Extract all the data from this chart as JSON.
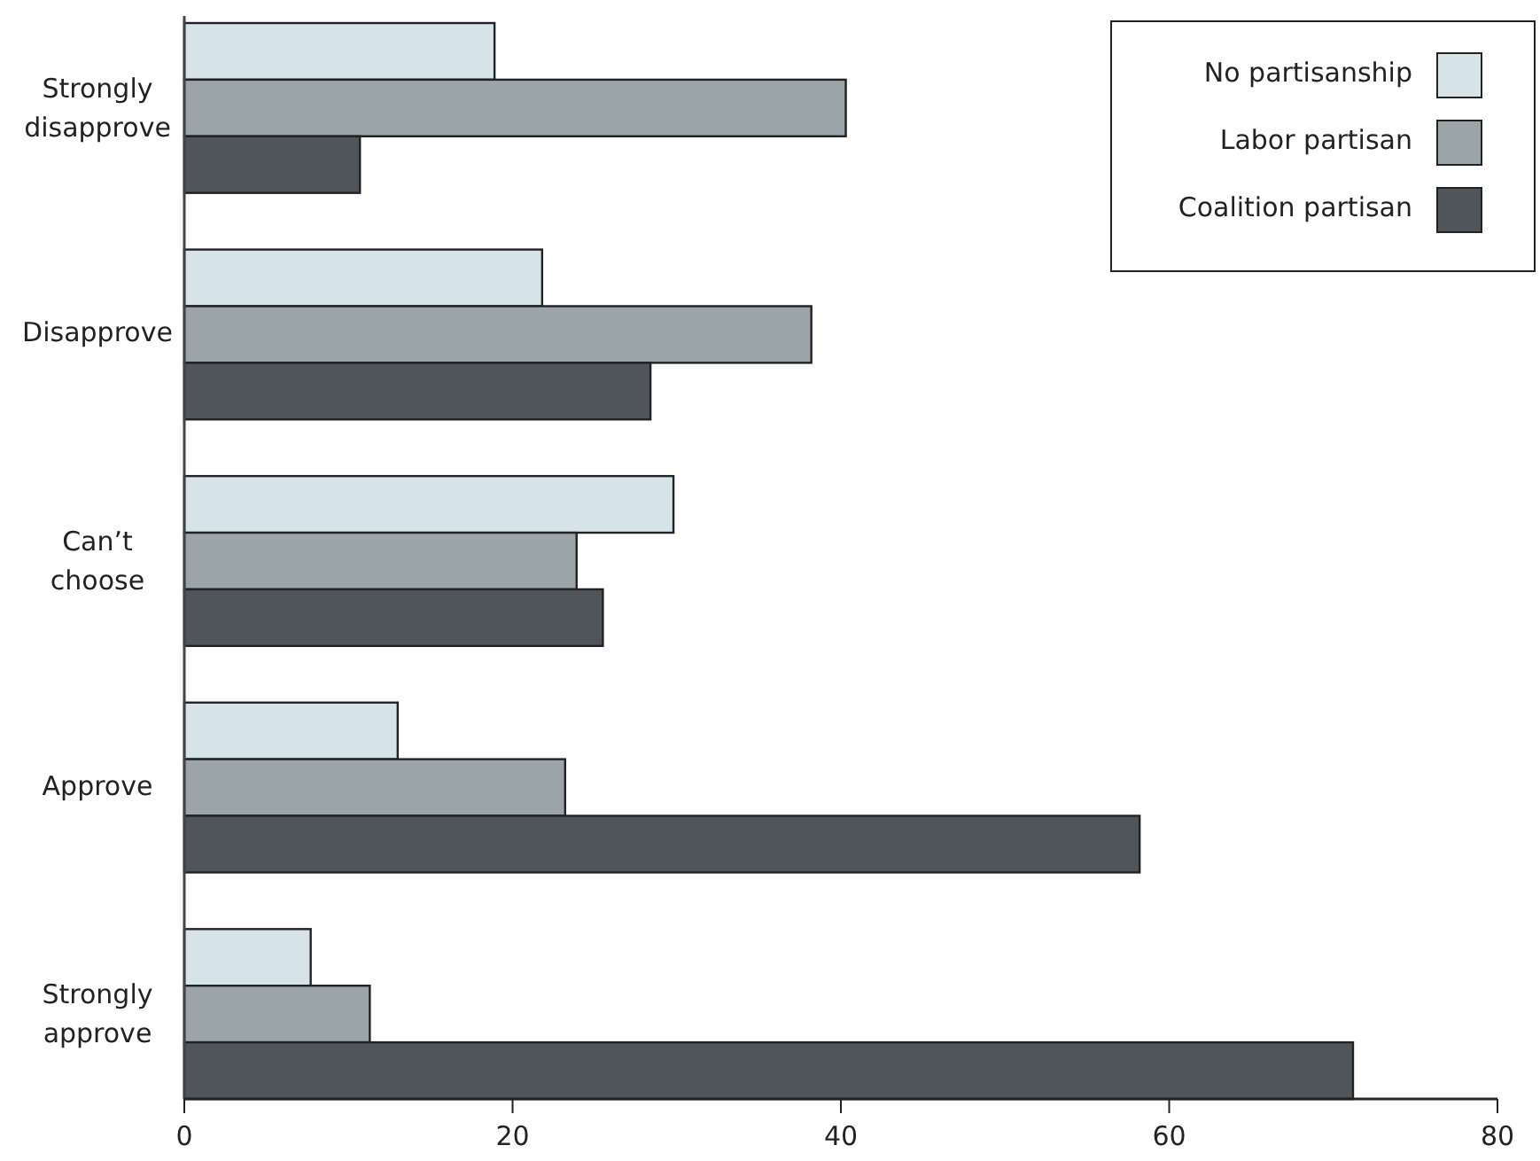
{
  "chart_data": {
    "type": "bar",
    "orientation": "horizontal",
    "categories": [
      "Strongly disapprove",
      "Disapprove",
      "Can’t choose",
      "Approve",
      "Strongly approve"
    ],
    "series": [
      {
        "name": "No partisanship",
        "color": "#d6e4ea",
        "values": [
          18.9,
          21.8,
          29.8,
          13.0,
          7.7
        ]
      },
      {
        "name": "Labor partisan",
        "color": "#9aa4a9",
        "values": [
          40.3,
          38.2,
          23.9,
          23.2,
          11.3
        ]
      },
      {
        "name": "Coalition partisan",
        "color": "#50555c",
        "values": [
          10.7,
          28.4,
          25.5,
          58.2,
          71.2
        ]
      }
    ],
    "xlim": [
      0,
      80
    ],
    "xticks": [
      0,
      20,
      40,
      60,
      80
    ],
    "legend": "top right"
  }
}
